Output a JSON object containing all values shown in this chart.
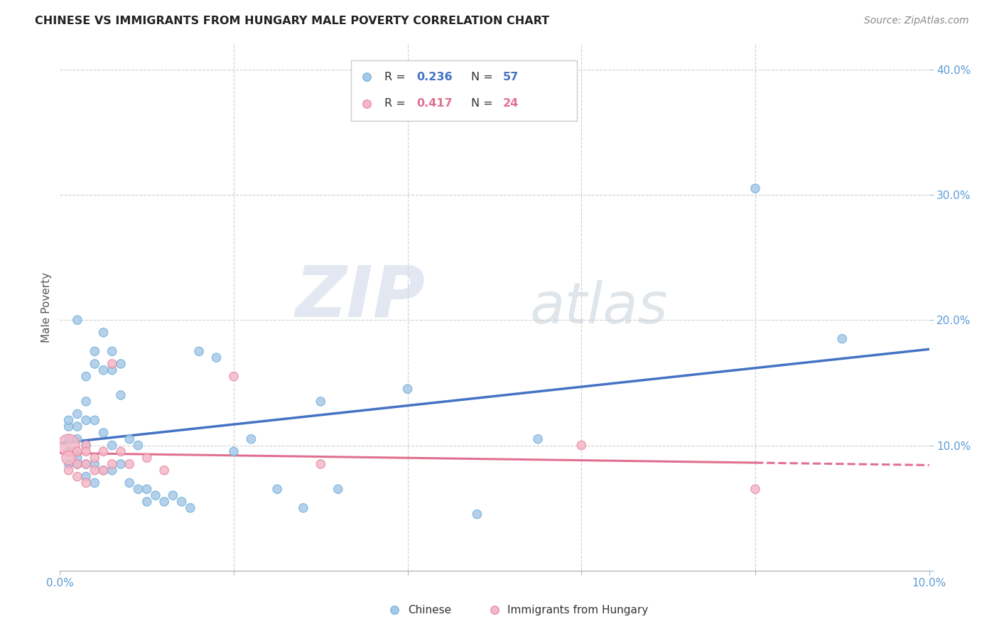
{
  "title": "CHINESE VS IMMIGRANTS FROM HUNGARY MALE POVERTY CORRELATION CHART",
  "source": "Source: ZipAtlas.com",
  "ylabel": "Male Poverty",
  "xlim": [
    0.0,
    0.1
  ],
  "ylim": [
    0.0,
    0.42
  ],
  "color_chinese": "#a8c8e8",
  "color_chinese_edge": "#6aaed6",
  "color_hungary": "#f4b8c8",
  "color_hungary_edge": "#e8809a",
  "color_chinese_line": "#4472C4",
  "color_hungary_line": "#e07090",
  "background_color": "#ffffff",
  "grid_color": "#d0d0d0",
  "chinese_x": [
    0.001,
    0.001,
    0.001,
    0.001,
    0.001,
    0.002,
    0.002,
    0.002,
    0.002,
    0.002,
    0.002,
    0.003,
    0.003,
    0.003,
    0.003,
    0.003,
    0.003,
    0.004,
    0.004,
    0.004,
    0.004,
    0.004,
    0.005,
    0.005,
    0.005,
    0.005,
    0.006,
    0.006,
    0.006,
    0.006,
    0.007,
    0.007,
    0.007,
    0.008,
    0.008,
    0.009,
    0.009,
    0.01,
    0.01,
    0.011,
    0.012,
    0.013,
    0.014,
    0.015,
    0.016,
    0.018,
    0.02,
    0.022,
    0.025,
    0.028,
    0.03,
    0.032,
    0.04,
    0.048,
    0.055,
    0.08,
    0.09
  ],
  "chinese_y": [
    0.115,
    0.105,
    0.095,
    0.085,
    0.12,
    0.2,
    0.125,
    0.105,
    0.085,
    0.115,
    0.09,
    0.155,
    0.135,
    0.12,
    0.1,
    0.085,
    0.075,
    0.175,
    0.165,
    0.12,
    0.085,
    0.07,
    0.19,
    0.16,
    0.11,
    0.08,
    0.175,
    0.16,
    0.1,
    0.08,
    0.165,
    0.14,
    0.085,
    0.105,
    0.07,
    0.1,
    0.065,
    0.065,
    0.055,
    0.06,
    0.055,
    0.06,
    0.055,
    0.05,
    0.175,
    0.17,
    0.095,
    0.105,
    0.065,
    0.05,
    0.135,
    0.065,
    0.145,
    0.045,
    0.105,
    0.305,
    0.185
  ],
  "chinese_sizes": [
    80,
    80,
    80,
    80,
    80,
    80,
    80,
    80,
    80,
    80,
    80,
    80,
    80,
    80,
    80,
    80,
    80,
    80,
    80,
    80,
    80,
    80,
    80,
    80,
    80,
    80,
    80,
    80,
    80,
    80,
    80,
    80,
    80,
    80,
    80,
    80,
    80,
    80,
    80,
    80,
    80,
    80,
    80,
    80,
    80,
    80,
    80,
    80,
    80,
    80,
    80,
    80,
    80,
    80,
    80,
    80,
    80
  ],
  "hungary_x": [
    0.001,
    0.001,
    0.001,
    0.002,
    0.002,
    0.002,
    0.003,
    0.003,
    0.003,
    0.003,
    0.004,
    0.004,
    0.005,
    0.005,
    0.006,
    0.006,
    0.007,
    0.008,
    0.01,
    0.012,
    0.02,
    0.03,
    0.06,
    0.08
  ],
  "hungary_y": [
    0.1,
    0.09,
    0.08,
    0.095,
    0.085,
    0.075,
    0.1,
    0.095,
    0.085,
    0.07,
    0.09,
    0.08,
    0.095,
    0.08,
    0.165,
    0.085,
    0.095,
    0.085,
    0.09,
    0.08,
    0.155,
    0.085,
    0.1,
    0.065
  ],
  "hungary_sizes": [
    500,
    200,
    80,
    80,
    80,
    80,
    80,
    80,
    80,
    80,
    80,
    80,
    80,
    80,
    80,
    80,
    80,
    80,
    80,
    80,
    80,
    80,
    80,
    80
  ],
  "watermark_zip": "ZIP",
  "watermark_atlas": "atlas",
  "legend_r1": "0.236",
  "legend_n1": "57",
  "legend_r2": "0.417",
  "legend_n2": "24"
}
